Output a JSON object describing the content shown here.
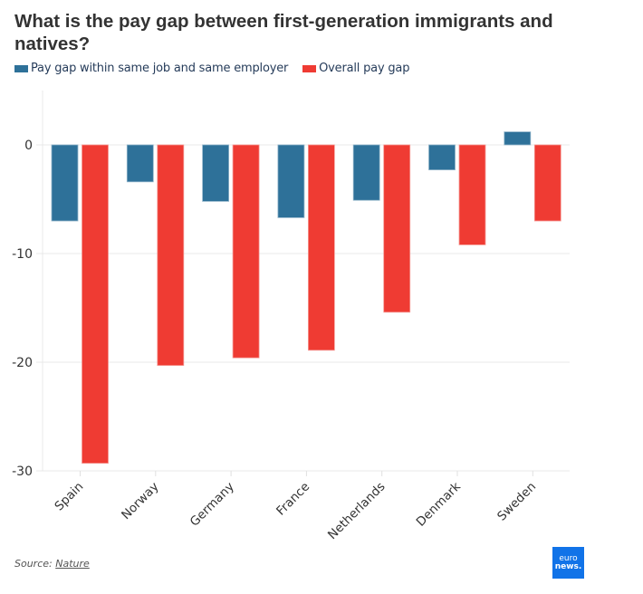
{
  "header": {
    "title": "What is the pay gap between first-generation immigrants and natives?"
  },
  "legend": [
    {
      "label": "Pay gap within same job and same employer",
      "color": "#2e7199"
    },
    {
      "label": "Overall pay gap",
      "color": "#ef3b33"
    }
  ],
  "footer": {
    "source_prefix": "Source: ",
    "source_link": "Nature",
    "logo_top": "euro",
    "logo_bottom": "news."
  },
  "chart_data": {
    "type": "bar",
    "title": "What is the pay gap between first-generation immigrants and natives?",
    "xlabel": "",
    "ylabel": "",
    "categories": [
      "Spain",
      "Norway",
      "Germany",
      "France",
      "Netherlands",
      "Denmark",
      "Sweden"
    ],
    "series": [
      {
        "name": "Pay gap within same job and same employer",
        "color": "#2e7199",
        "values": [
          -7.0,
          -3.4,
          -5.2,
          -6.7,
          -5.1,
          -2.3,
          1.2
        ]
      },
      {
        "name": "Overall pay gap",
        "color": "#ef3b33",
        "values": [
          -29.3,
          -20.3,
          -19.6,
          -18.9,
          -15.4,
          -9.2,
          -7.0
        ]
      }
    ],
    "ylim": [
      -30,
      5
    ],
    "yticks": [
      0,
      -10,
      -20,
      -30
    ],
    "ytick_labels": [
      "0",
      "-10",
      "-20",
      "-30"
    ],
    "grid": true,
    "legend_position": "top-left"
  }
}
